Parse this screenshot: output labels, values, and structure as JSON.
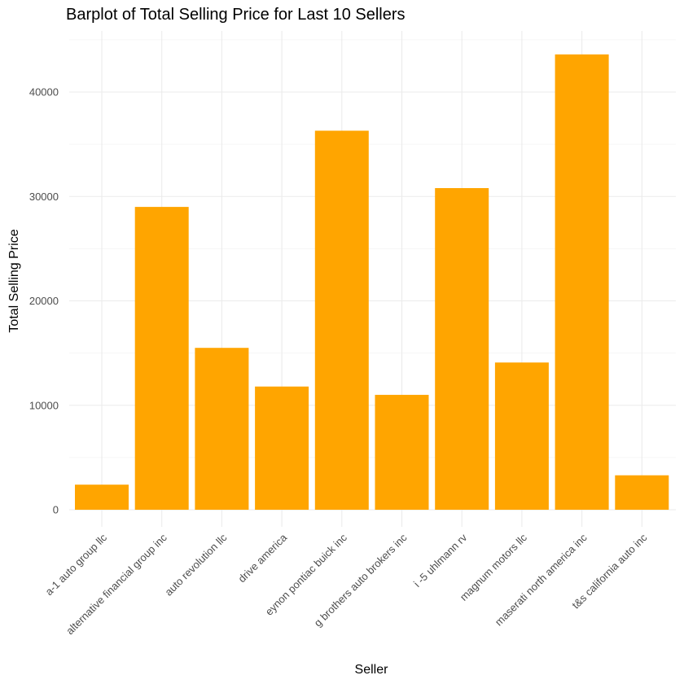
{
  "chart_data": {
    "type": "bar",
    "title": "Barplot of Total Selling Price for Last 10 Sellers",
    "xlabel": "Seller",
    "ylabel": "Total Selling Price",
    "categories": [
      "a-1 auto group llc",
      "alternative financial group inc",
      "auto revolution llc",
      "drive america",
      "eynon pontiac buick inc",
      "g brothers auto brokers inc",
      "i -5 uhlmann rv",
      "magnum motors llc",
      "maserati north america inc",
      "t&s california auto inc"
    ],
    "values": [
      2400,
      29000,
      15500,
      11800,
      36300,
      11000,
      30800,
      14100,
      43600,
      3300
    ],
    "ylim": [
      0,
      45000
    ],
    "yticks": [
      0,
      10000,
      20000,
      30000,
      40000
    ],
    "ytick_labels": [
      "0",
      "10000",
      "20000",
      "30000",
      "40000"
    ],
    "bar_color": "#FFA500",
    "grid": true,
    "legend": "none"
  }
}
